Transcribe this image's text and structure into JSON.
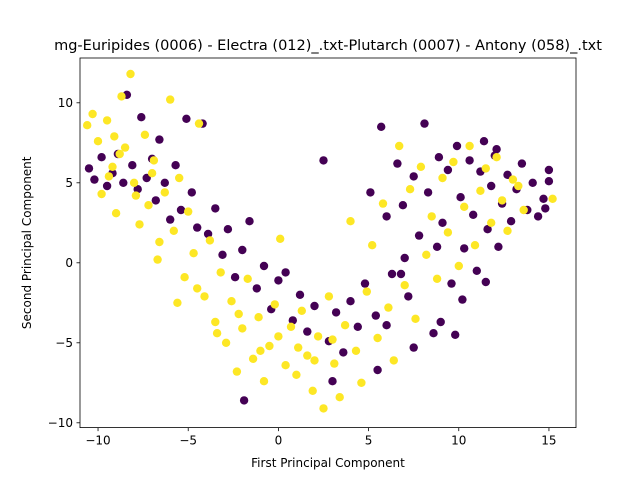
{
  "chart_data": {
    "type": "scatter",
    "title": "mg-Euripides (0006) - Electra (012)_.txt-Plutarch (0007) - Antony (058)_.txt",
    "xlabel": "First Principal Component",
    "ylabel": "Second Principal Component",
    "xlim": [
      -11.0,
      16.5
    ],
    "ylim": [
      -10.3,
      12.8
    ],
    "xticks": [
      -10,
      -5,
      0,
      5,
      10,
      15
    ],
    "yticks": [
      -10,
      -5,
      0,
      5,
      10
    ],
    "grid": false,
    "legend": "none",
    "series": [
      {
        "color": "#440154",
        "points": [
          [
            -10.5,
            5.9
          ],
          [
            -10.2,
            5.2
          ],
          [
            -9.8,
            6.6
          ],
          [
            -9.5,
            4.8
          ],
          [
            -9.2,
            5.6
          ],
          [
            -8.9,
            6.8
          ],
          [
            -8.6,
            5.0
          ],
          [
            -8.4,
            10.5
          ],
          [
            -8.1,
            6.1
          ],
          [
            -7.8,
            4.6
          ],
          [
            -7.6,
            9.1
          ],
          [
            -7.3,
            5.3
          ],
          [
            -7.0,
            6.5
          ],
          [
            -6.8,
            3.9
          ],
          [
            -6.6,
            7.7
          ],
          [
            -6.3,
            5.0
          ],
          [
            -6.0,
            2.7
          ],
          [
            -5.7,
            6.1
          ],
          [
            -5.4,
            3.3
          ],
          [
            -5.1,
            9.0
          ],
          [
            -4.8,
            4.4
          ],
          [
            -4.5,
            2.2
          ],
          [
            -4.2,
            8.7
          ],
          [
            -3.9,
            1.8
          ],
          [
            -3.5,
            3.4
          ],
          [
            -3.1,
            0.5
          ],
          [
            -2.8,
            2.1
          ],
          [
            -2.4,
            -0.9
          ],
          [
            -2.0,
            0.8
          ],
          [
            -1.6,
            2.6
          ],
          [
            -1.2,
            -1.6
          ],
          [
            -0.8,
            -0.2
          ],
          [
            -0.4,
            -2.9
          ],
          [
            0.0,
            -1.1
          ],
          [
            0.4,
            -0.6
          ],
          [
            0.8,
            -3.6
          ],
          [
            1.2,
            -2.0
          ],
          [
            1.6,
            -4.3
          ],
          [
            2.0,
            -2.7
          ],
          [
            2.5,
            6.4
          ],
          [
            2.8,
            -4.9
          ],
          [
            3.2,
            -3.1
          ],
          [
            3.6,
            -5.6
          ],
          [
            4.0,
            -2.4
          ],
          [
            4.4,
            -4.0
          ],
          [
            4.8,
            -1.3
          ],
          [
            5.1,
            4.4
          ],
          [
            5.4,
            -3.3
          ],
          [
            5.7,
            8.5
          ],
          [
            6.0,
            2.9
          ],
          [
            6.3,
            -0.7
          ],
          [
            6.6,
            6.2
          ],
          [
            6.9,
            3.6
          ],
          [
            7.2,
            -2.1
          ],
          [
            7.5,
            5.4
          ],
          [
            7.8,
            1.7
          ],
          [
            8.1,
            8.7
          ],
          [
            8.3,
            4.4
          ],
          [
            8.6,
            -4.4
          ],
          [
            8.9,
            6.6
          ],
          [
            9.1,
            2.5
          ],
          [
            9.4,
            5.8
          ],
          [
            9.6,
            -1.3
          ],
          [
            9.9,
            7.3
          ],
          [
            10.1,
            4.1
          ],
          [
            10.3,
            0.9
          ],
          [
            10.6,
            6.4
          ],
          [
            10.8,
            3.0
          ],
          [
            11.0,
            -0.5
          ],
          [
            11.2,
            5.7
          ],
          [
            11.4,
            7.6
          ],
          [
            11.6,
            2.1
          ],
          [
            11.8,
            4.8
          ],
          [
            12.0,
            6.7
          ],
          [
            12.2,
            1.0
          ],
          [
            12.4,
            3.7
          ],
          [
            12.7,
            5.5
          ],
          [
            12.9,
            2.6
          ],
          [
            13.2,
            4.6
          ],
          [
            13.5,
            6.2
          ],
          [
            13.8,
            3.3
          ],
          [
            14.1,
            5.0
          ],
          [
            14.4,
            2.9
          ],
          [
            14.7,
            4.0
          ],
          [
            15.0,
            5.8
          ],
          [
            15.0,
            5.1
          ],
          [
            14.8,
            3.4
          ],
          [
            9.0,
            -3.7
          ],
          [
            7.5,
            -5.3
          ],
          [
            6.0,
            -3.9
          ],
          [
            -1.9,
            -8.6
          ],
          [
            3.0,
            -7.4
          ],
          [
            5.5,
            -6.7
          ],
          [
            10.2,
            -2.3
          ],
          [
            11.5,
            -1.2
          ],
          [
            8.8,
            1.0
          ],
          [
            7.0,
            0.3
          ],
          [
            9.8,
            -4.5
          ],
          [
            6.8,
            -0.7
          ],
          [
            12.1,
            7.1
          ]
        ]
      },
      {
        "color": "#fde725",
        "points": [
          [
            -10.6,
            8.6
          ],
          [
            -10.3,
            9.3
          ],
          [
            -10.0,
            7.6
          ],
          [
            -9.8,
            4.3
          ],
          [
            -9.5,
            8.9
          ],
          [
            -9.2,
            6.0
          ],
          [
            -9.0,
            3.1
          ],
          [
            -8.7,
            10.4
          ],
          [
            -8.5,
            7.2
          ],
          [
            -8.2,
            11.8
          ],
          [
            -8.0,
            5.0
          ],
          [
            -7.7,
            2.4
          ],
          [
            -7.4,
            8.0
          ],
          [
            -7.2,
            3.6
          ],
          [
            -6.9,
            6.4
          ],
          [
            -6.6,
            1.3
          ],
          [
            -6.3,
            4.4
          ],
          [
            -6.0,
            10.2
          ],
          [
            -5.8,
            2.0
          ],
          [
            -5.5,
            5.3
          ],
          [
            -5.2,
            -0.9
          ],
          [
            -5.0,
            3.2
          ],
          [
            -4.7,
            0.6
          ],
          [
            -4.4,
            8.7
          ],
          [
            -4.1,
            -2.1
          ],
          [
            -3.8,
            1.4
          ],
          [
            -3.5,
            -3.7
          ],
          [
            -3.2,
            -0.6
          ],
          [
            -2.9,
            -5.0
          ],
          [
            -2.6,
            -2.4
          ],
          [
            -2.3,
            -6.8
          ],
          [
            -2.0,
            -4.1
          ],
          [
            -1.7,
            -1.0
          ],
          [
            -1.4,
            -6.0
          ],
          [
            -1.1,
            -3.4
          ],
          [
            -0.8,
            -7.4
          ],
          [
            -0.5,
            -5.2
          ],
          [
            -0.2,
            -2.6
          ],
          [
            0.1,
            1.5
          ],
          [
            0.4,
            -6.4
          ],
          [
            0.7,
            -4.0
          ],
          [
            1.0,
            -7.0
          ],
          [
            1.3,
            -3.0
          ],
          [
            1.6,
            -5.8
          ],
          [
            1.9,
            -8.0
          ],
          [
            2.2,
            -4.6
          ],
          [
            2.5,
            -9.1
          ],
          [
            2.8,
            -2.1
          ],
          [
            3.1,
            -6.3
          ],
          [
            3.4,
            -8.4
          ],
          [
            3.7,
            -3.9
          ],
          [
            4.0,
            2.6
          ],
          [
            4.3,
            -5.5
          ],
          [
            4.6,
            -7.5
          ],
          [
            4.9,
            -1.8
          ],
          [
            5.2,
            1.1
          ],
          [
            5.5,
            -4.7
          ],
          [
            5.8,
            3.7
          ],
          [
            6.1,
            -2.8
          ],
          [
            6.4,
            -6.1
          ],
          [
            6.7,
            7.3
          ],
          [
            7.0,
            -1.4
          ],
          [
            7.3,
            4.6
          ],
          [
            7.6,
            -3.5
          ],
          [
            7.9,
            6.0
          ],
          [
            8.2,
            0.5
          ],
          [
            8.5,
            2.9
          ],
          [
            8.8,
            -1.0
          ],
          [
            9.1,
            5.3
          ],
          [
            9.4,
            1.9
          ],
          [
            9.7,
            6.3
          ],
          [
            10.0,
            -0.2
          ],
          [
            10.3,
            3.5
          ],
          [
            10.6,
            7.3
          ],
          [
            10.9,
            1.1
          ],
          [
            11.2,
            4.5
          ],
          [
            11.5,
            5.9
          ],
          [
            11.8,
            2.5
          ],
          [
            12.1,
            6.6
          ],
          [
            12.4,
            3.9
          ],
          [
            12.7,
            2.0
          ],
          [
            13.0,
            5.2
          ],
          [
            13.3,
            4.8
          ],
          [
            13.6,
            3.3
          ],
          [
            15.2,
            4.0
          ],
          [
            -9.4,
            5.4
          ],
          [
            -8.8,
            6.8
          ],
          [
            -7.9,
            4.2
          ],
          [
            -6.7,
            0.2
          ],
          [
            -5.6,
            -2.5
          ],
          [
            -4.5,
            -1.6
          ],
          [
            -3.4,
            -4.4
          ],
          [
            -2.2,
            -3.2
          ],
          [
            -1.0,
            -5.5
          ],
          [
            0.0,
            -4.6
          ],
          [
            1.1,
            -5.3
          ],
          [
            2.0,
            -6.1
          ],
          [
            3.0,
            -4.8
          ],
          [
            -9.1,
            7.9
          ],
          [
            -7.0,
            5.6
          ]
        ]
      }
    ]
  }
}
